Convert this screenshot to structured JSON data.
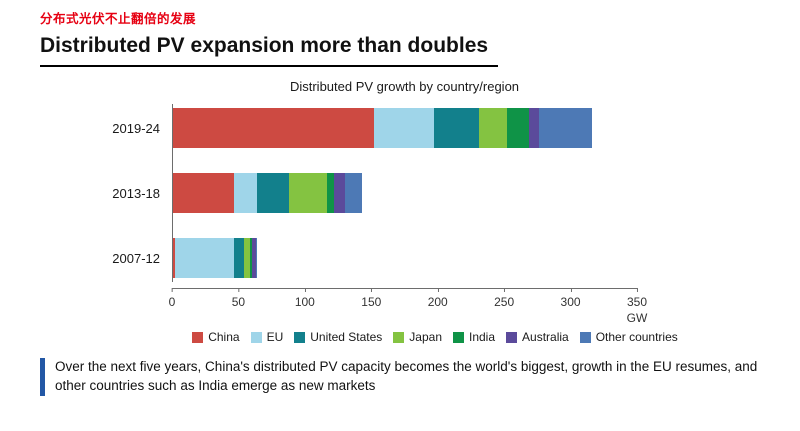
{
  "header": {
    "chinese_title": "分布式光伏不止翻倍的发展",
    "title": "Distributed PV expansion more than doubles"
  },
  "chart_data": {
    "type": "bar",
    "orientation": "horizontal",
    "stacked": true,
    "title": "Distributed PV growth by country/region",
    "categories": [
      "2019-24",
      "2013-18",
      "2007-12"
    ],
    "series": [
      {
        "name": "China",
        "color": "#cd4a42",
        "values": [
          152,
          47,
          2
        ]
      },
      {
        "name": "EU",
        "color": "#9fd5e9",
        "values": [
          45,
          17,
          45
        ]
      },
      {
        "name": "United States",
        "color": "#12808c",
        "values": [
          34,
          24,
          7
        ]
      },
      {
        "name": "Japan",
        "color": "#84c341",
        "values": [
          21,
          29,
          5
        ]
      },
      {
        "name": "India",
        "color": "#0f9347",
        "values": [
          17,
          5,
          1
        ]
      },
      {
        "name": "Australia",
        "color": "#5b4a9b",
        "values": [
          7,
          8,
          3
        ]
      },
      {
        "name": "Other countries",
        "color": "#4d79b5",
        "values": [
          40,
          13,
          1
        ]
      }
    ],
    "xlim": [
      0,
      350
    ],
    "x_ticks": [
      0,
      50,
      100,
      150,
      200,
      250,
      300,
      350
    ],
    "x_unit": "GW",
    "grid": false,
    "legend_position": "bottom"
  },
  "footer": {
    "note": "Over the next five years, China's distributed PV capacity becomes the world's biggest, growth in the EU resumes, and other countries such as India emerge as new markets"
  }
}
